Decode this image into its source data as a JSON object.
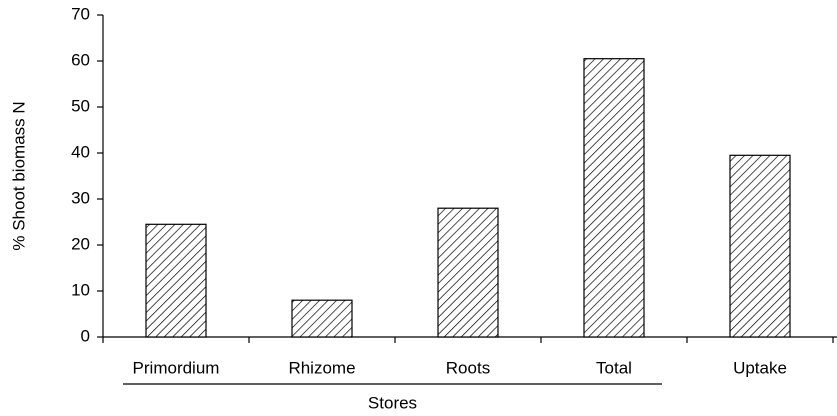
{
  "chart_data": {
    "type": "bar",
    "y_label": "% Shoot biomass N",
    "x_label": "Stores",
    "categories": [
      "Primordium",
      "Rhizome",
      "Roots",
      "Total",
      "Uptake"
    ],
    "values": [
      24.5,
      8,
      28,
      60.5,
      39.5
    ],
    "color": "#000000",
    "fill": "hatch",
    "ylim": [
      0,
      70
    ],
    "yticks": [
      0,
      10,
      20,
      30,
      40,
      50,
      60,
      70
    ]
  }
}
